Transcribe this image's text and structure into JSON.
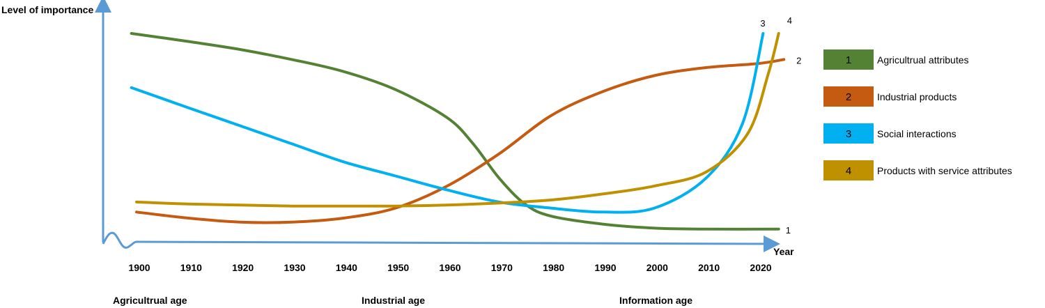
{
  "chart_data": {
    "type": "line",
    "ylabel": "Level of importance",
    "xlabel": "Year",
    "x_ticks": [
      "1900",
      "1910",
      "1920",
      "1930",
      "1940",
      "1950",
      "1960",
      "1970",
      "1980",
      "1990",
      "2000",
      "2010",
      "2020"
    ],
    "xlim": [
      1900,
      2020
    ],
    "ylim": [
      0,
      100
    ],
    "eras": [
      "Agricultrual age",
      "Industrial age",
      "Information age"
    ],
    "series": [
      {
        "id": "1",
        "name": "Agricultrual attributes",
        "color": "#548235",
        "points": [
          [
            1899,
            100
          ],
          [
            1910,
            96
          ],
          [
            1920,
            92
          ],
          [
            1930,
            87
          ],
          [
            1940,
            81
          ],
          [
            1950,
            72
          ],
          [
            1960,
            58
          ],
          [
            1965,
            45
          ],
          [
            1970,
            28
          ],
          [
            1975,
            15
          ],
          [
            1980,
            9
          ],
          [
            1990,
            5
          ],
          [
            2000,
            3
          ],
          [
            2010,
            2.5
          ],
          [
            2024,
            2.5
          ]
        ],
        "end_label": "1"
      },
      {
        "id": "2",
        "name": "Industrial products",
        "color": "#C55A11",
        "points": [
          [
            1900,
            11
          ],
          [
            1910,
            8
          ],
          [
            1920,
            6
          ],
          [
            1930,
            6
          ],
          [
            1940,
            8
          ],
          [
            1950,
            13
          ],
          [
            1960,
            24
          ],
          [
            1970,
            40
          ],
          [
            1980,
            59
          ],
          [
            1990,
            71
          ],
          [
            2000,
            79
          ],
          [
            2010,
            83
          ],
          [
            2020,
            85
          ],
          [
            2025,
            87
          ]
        ],
        "end_label": "2"
      },
      {
        "id": "3",
        "name": "Social interactions",
        "color": "#00B0F0",
        "points": [
          [
            1899,
            73
          ],
          [
            1910,
            63
          ],
          [
            1920,
            54
          ],
          [
            1930,
            45
          ],
          [
            1940,
            36
          ],
          [
            1950,
            29
          ],
          [
            1960,
            22
          ],
          [
            1970,
            16
          ],
          [
            1980,
            13
          ],
          [
            1990,
            11
          ],
          [
            2000,
            13
          ],
          [
            2010,
            28
          ],
          [
            2017,
            55
          ],
          [
            2021,
            100
          ]
        ],
        "end_label": "3"
      },
      {
        "id": "4",
        "name": "Products with service attributes",
        "color": "#BF9000",
        "points": [
          [
            1900,
            16
          ],
          [
            1910,
            15
          ],
          [
            1920,
            14.5
          ],
          [
            1930,
            14
          ],
          [
            1940,
            14
          ],
          [
            1950,
            14
          ],
          [
            1960,
            14.5
          ],
          [
            1970,
            15.5
          ],
          [
            1980,
            17
          ],
          [
            1990,
            20
          ],
          [
            2000,
            24
          ],
          [
            2010,
            31
          ],
          [
            2018,
            50
          ],
          [
            2022,
            80
          ],
          [
            2024,
            100
          ]
        ],
        "end_label": "4"
      }
    ],
    "legend": [
      {
        "num": "1",
        "label": "Agricultrual attributes",
        "color": "#548235"
      },
      {
        "num": "2",
        "label": "Industrial products",
        "color": "#C55A11"
      },
      {
        "num": "3",
        "label": "Social interactions",
        "color": "#00B0F0"
      },
      {
        "num": "4",
        "label": "Products with service attributes",
        "color": "#BF9000"
      }
    ],
    "legend_position": "right",
    "axis_color": "#5B9BD5",
    "grid": false
  }
}
